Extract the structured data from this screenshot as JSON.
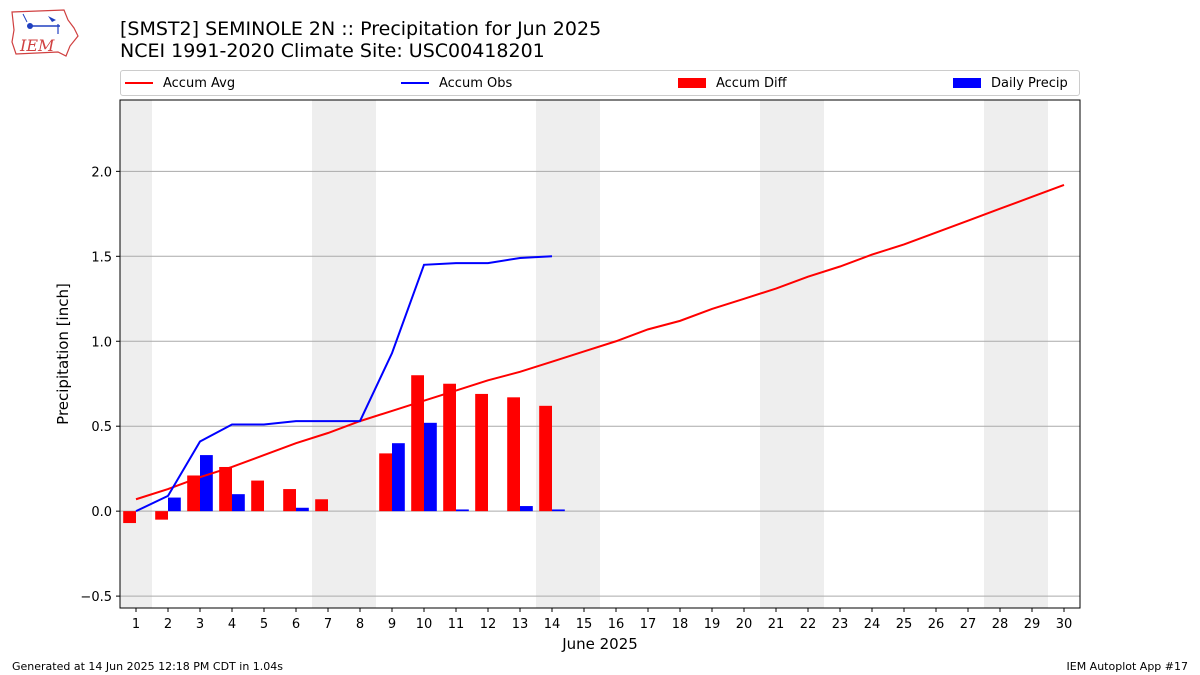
{
  "logo": {
    "text": "IEM"
  },
  "header": {
    "title": "[SMST2] SEMINOLE 2N :: Precipitation for Jun 2025",
    "subtitle": "NCEI 1991-2020 Climate Site: USC00418201"
  },
  "legend": {
    "accum_avg": "Accum Avg",
    "accum_obs": "Accum Obs",
    "accum_diff": "Accum Diff",
    "daily_precip": "Daily Precip"
  },
  "footer": {
    "generated": "Generated at 14 Jun 2025 12:18 PM CDT in 1.04s",
    "app": "IEM Autoplot App #17"
  },
  "colors": {
    "accum_avg": "#ff0000",
    "accum_obs": "#0000ff",
    "accum_diff": "#ff0000",
    "daily_precip": "#0000ff",
    "weekend_shade": "#eeeeee",
    "grid": "#aaaaaa"
  },
  "chart_data": {
    "type": "bar",
    "xlabel": "June 2025",
    "ylabel": "Precipitation [inch]",
    "xlim": [
      0.5,
      30.5
    ],
    "ylim": [
      -0.57,
      2.42
    ],
    "x_ticks": [
      1,
      2,
      3,
      4,
      5,
      6,
      7,
      8,
      9,
      10,
      11,
      12,
      13,
      14,
      15,
      16,
      17,
      18,
      19,
      20,
      21,
      22,
      23,
      24,
      25,
      26,
      27,
      28,
      29,
      30
    ],
    "y_ticks": [
      -0.5,
      0.0,
      0.5,
      1.0,
      1.5,
      2.0
    ],
    "y_tick_labels": [
      "−0.5",
      "0.0",
      "0.5",
      "1.0",
      "1.5",
      "2.0"
    ],
    "grid": "horizontal",
    "legend_placement": "top",
    "weekend_days": [
      1,
      7,
      8,
      14,
      15,
      21,
      22,
      28,
      29
    ],
    "series": [
      {
        "name": "Accum Avg",
        "type": "line",
        "x": [
          1,
          2,
          3,
          4,
          5,
          6,
          7,
          8,
          9,
          10,
          11,
          12,
          13,
          14,
          15,
          16,
          17,
          18,
          19,
          20,
          21,
          22,
          23,
          24,
          25,
          26,
          27,
          28,
          29,
          30
        ],
        "values": [
          0.07,
          0.13,
          0.2,
          0.26,
          0.33,
          0.4,
          0.46,
          0.53,
          0.59,
          0.65,
          0.71,
          0.77,
          0.82,
          0.88,
          0.94,
          1.0,
          1.07,
          1.12,
          1.19,
          1.25,
          1.31,
          1.38,
          1.44,
          1.51,
          1.57,
          1.64,
          1.71,
          1.78,
          1.85,
          1.92
        ]
      },
      {
        "name": "Accum Obs",
        "type": "line",
        "x": [
          2,
          3,
          4,
          5,
          6,
          7,
          8,
          9,
          10,
          11,
          12,
          13,
          14
        ],
        "x_start_note": "",
        "values": [
          0.09,
          0.41,
          0.51,
          0.51,
          0.53,
          0.53,
          0.53,
          0.93,
          1.45,
          1.46,
          1.46,
          1.49,
          1.5
        ],
        "first_point": [
          1,
          0.0
        ]
      },
      {
        "name": "Accum Diff",
        "type": "bar",
        "x": [
          1,
          2,
          3,
          4,
          5,
          6,
          7,
          8,
          9,
          10,
          11,
          12,
          13,
          14
        ],
        "values": [
          -0.07,
          -0.05,
          0.21,
          0.26,
          0.18,
          0.13,
          0.07,
          0.0,
          0.34,
          0.8,
          0.75,
          0.69,
          0.67,
          0.62
        ]
      },
      {
        "name": "Daily Precip",
        "type": "bar",
        "x": [
          1,
          2,
          3,
          4,
          5,
          6,
          7,
          8,
          9,
          10,
          11,
          12,
          13,
          14
        ],
        "values": [
          0.0,
          0.08,
          0.33,
          0.1,
          0.0,
          0.02,
          0.0,
          0.0,
          0.4,
          0.52,
          0.01,
          0.0,
          0.03,
          0.01
        ]
      }
    ]
  }
}
